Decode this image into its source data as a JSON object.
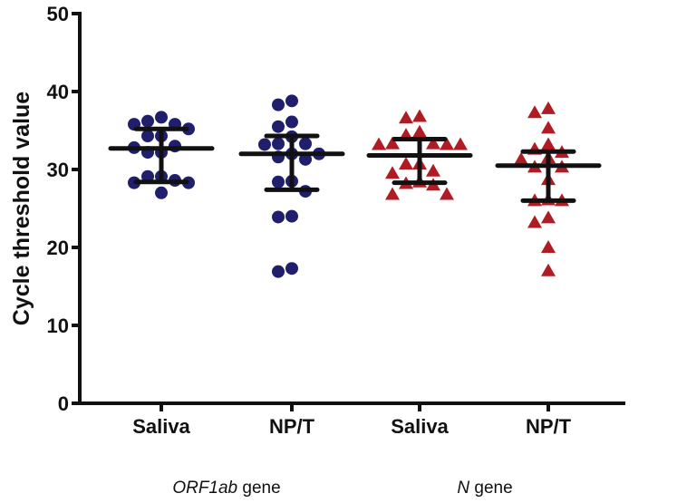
{
  "chart_data": {
    "type": "scatter",
    "subtype": "dot plot with median and interquartile range",
    "ylabel": "Cycle threshold value",
    "ylim": [
      0,
      50
    ],
    "yticks": [
      0,
      10,
      20,
      30,
      40,
      50
    ],
    "grid": false,
    "categories": [
      "Saliva",
      "NP/T",
      "Saliva",
      "NP/T"
    ],
    "groups": [
      {
        "label": "ORF1ab gene",
        "label_italic": "ORF1ab",
        "label_rest": " gene",
        "categories": [
          0,
          1
        ]
      },
      {
        "label": "N gene",
        "label_italic": "N",
        "label_rest": " gene",
        "categories": [
          2,
          3
        ]
      }
    ],
    "series": [
      {
        "category": "Saliva",
        "gene": "ORF1ab",
        "marker": "circle",
        "color": "#1f1f6e",
        "median": 32.7,
        "q1": 28.4,
        "q3": 35.2,
        "values": [
          36.7,
          35.8,
          35.2,
          35.8,
          36.2,
          34.3,
          34.3,
          33.0,
          32.2,
          32.2,
          32.8,
          28.6,
          28.3,
          29.1,
          29.1,
          28.3,
          27.0
        ]
      },
      {
        "category": "NP/T",
        "gene": "ORF1ab",
        "marker": "circle",
        "color": "#1f1f6e",
        "median": 32.0,
        "q1": 27.4,
        "q3": 34.3,
        "values": [
          38.8,
          38.3,
          36.1,
          35.5,
          34.2,
          33.3,
          33.2,
          33.3,
          32.0,
          31.6,
          32.0,
          31.3,
          28.5,
          28.4,
          27.2,
          24.0,
          23.9,
          17.3,
          16.9
        ]
      },
      {
        "category": "Saliva",
        "gene": "N",
        "marker": "triangle",
        "color": "#b01c24",
        "median": 31.8,
        "q1": 28.3,
        "q3": 33.9,
        "values": [
          36.8,
          36.6,
          34.8,
          34.4,
          33.2,
          33.3,
          33.2,
          33.2,
          33.3,
          30.7,
          30.7,
          29.8,
          29.5,
          28.2,
          28.0,
          28.4,
          26.8,
          26.8
        ]
      },
      {
        "category": "NP/T",
        "gene": "N",
        "marker": "triangle",
        "color": "#b01c24",
        "median": 30.5,
        "q1": 26.0,
        "q3": 32.3,
        "values": [
          37.8,
          37.3,
          35.3,
          33.2,
          32.6,
          32.2,
          31.5,
          31.3,
          30.3,
          30.3,
          28.7,
          26.0,
          26.0,
          26.1,
          23.8,
          23.2,
          20.0,
          17.0
        ]
      }
    ]
  }
}
